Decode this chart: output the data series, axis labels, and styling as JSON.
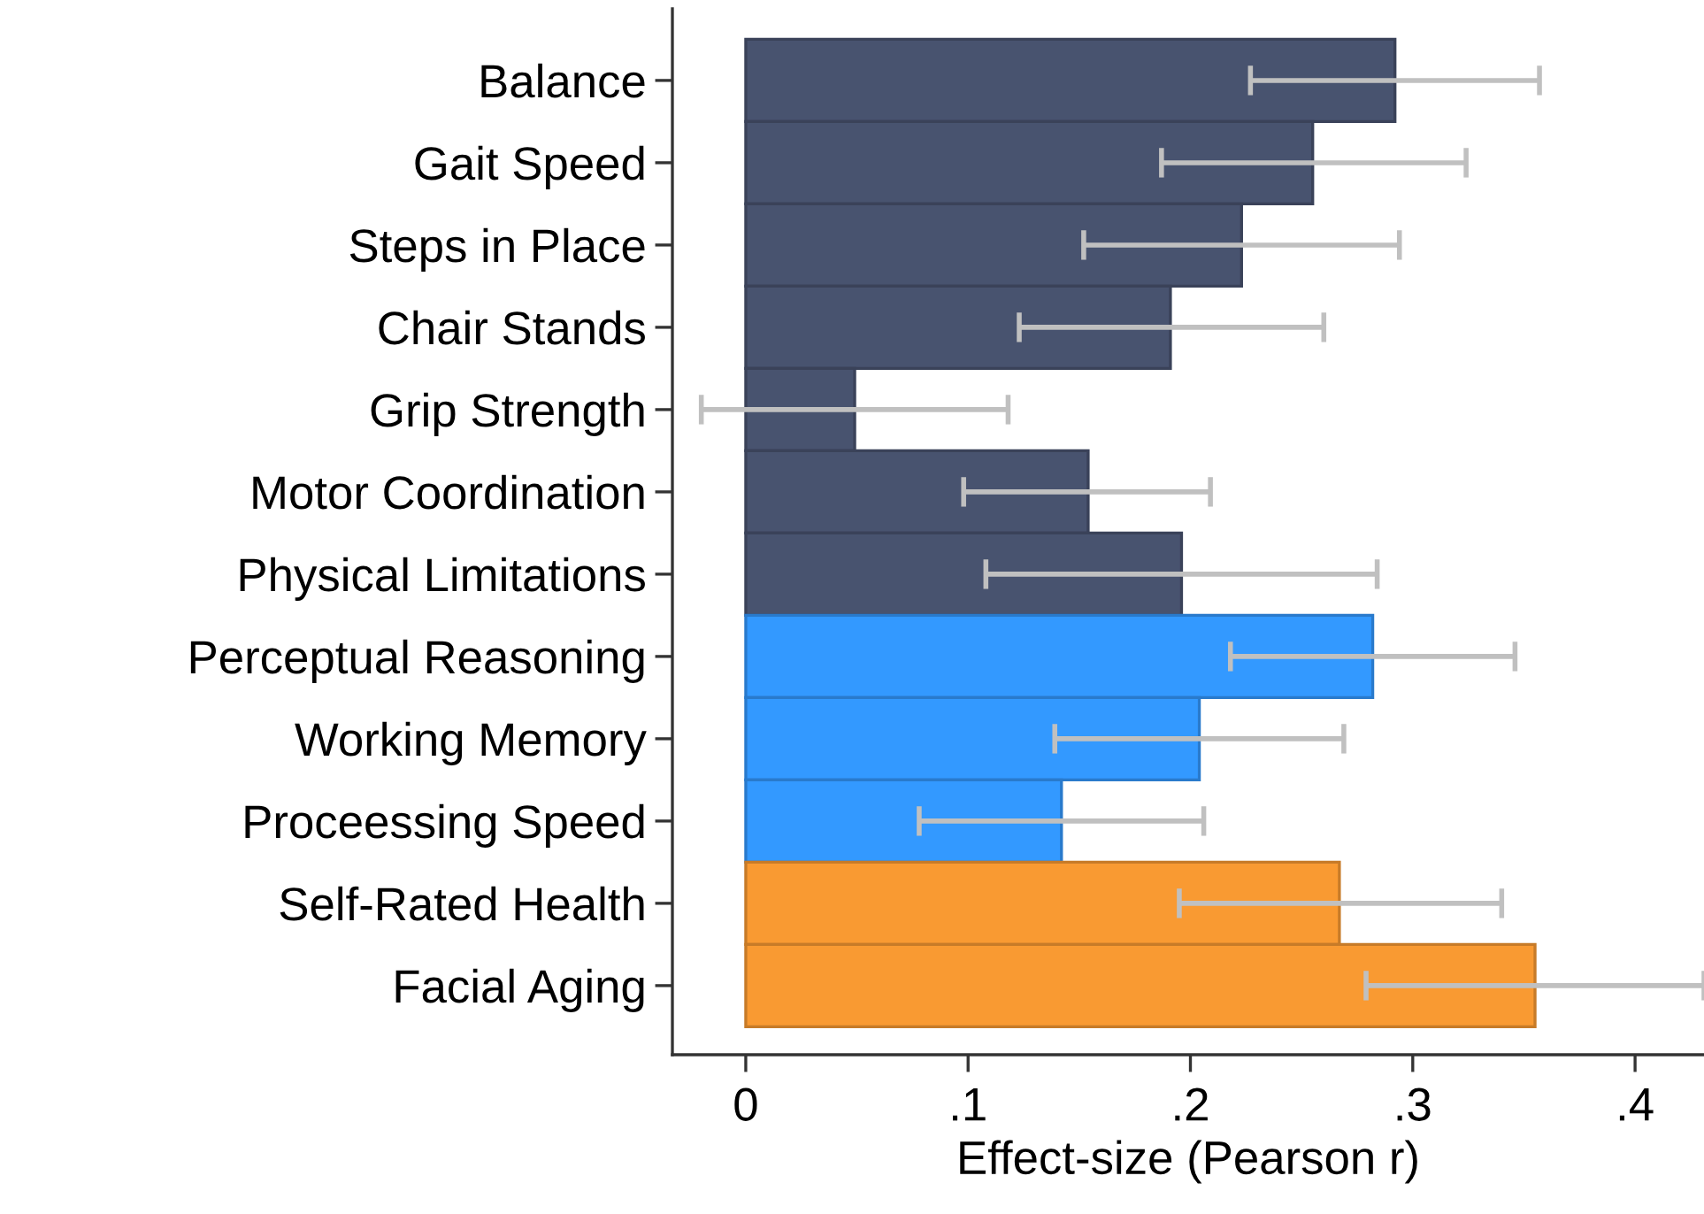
{
  "chart_data": {
    "type": "bar",
    "orientation": "horizontal",
    "xlabel": "Effect-size (Pearson r)",
    "categories": [
      "Balance",
      "Gait Speed",
      "Steps in Place",
      "Chair Stands",
      "Grip Strength",
      "Motor Coordination",
      "Physical Limitations",
      "Perceptual Reasoning",
      "Working Memory",
      "Proceessing Speed",
      "Self-Rated Health",
      "Facial Aging"
    ],
    "values": [
      0.292,
      0.255,
      0.223,
      0.191,
      0.049,
      0.154,
      0.196,
      0.282,
      0.204,
      0.142,
      0.267,
      0.355
    ],
    "colors": [
      "#48536f",
      "#48536f",
      "#48536f",
      "#48536f",
      "#48536f",
      "#48536f",
      "#48536f",
      "#3399ff",
      "#3399ff",
      "#3399ff",
      "#f99a32",
      "#f99a32"
    ],
    "errors": [
      [
        0.227,
        0.357
      ],
      [
        0.187,
        0.324
      ],
      [
        0.152,
        0.294
      ],
      [
        0.123,
        0.26
      ],
      [
        -0.02,
        0.118
      ],
      [
        0.098,
        0.209
      ],
      [
        0.108,
        0.284
      ],
      [
        0.218,
        0.346
      ],
      [
        0.139,
        0.269
      ],
      [
        0.078,
        0.206
      ],
      [
        0.195,
        0.34
      ],
      [
        0.279,
        0.431
      ]
    ],
    "xlim": [
      -0.033,
      0.431
    ],
    "xticks": [
      0,
      {
        "value": 0.1,
        "label": ".1"
      },
      {
        "value": 0.2,
        "label": ".2"
      },
      {
        "value": 0.3,
        "label": ".3"
      },
      {
        "value": 0.4,
        "label": ".4"
      }
    ],
    "grid": false
  }
}
